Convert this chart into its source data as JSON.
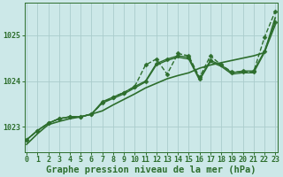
{
  "title": "Graphe pression niveau de la mer (hPa)",
  "bg_color": "#cce8e8",
  "grid_color": "#aacccc",
  "line_color": "#2d6e2d",
  "x_labels": [
    "0",
    "1",
    "2",
    "3",
    "4",
    "5",
    "6",
    "7",
    "8",
    "9",
    "10",
    "11",
    "12",
    "13",
    "14",
    "15",
    "16",
    "17",
    "18",
    "19",
    "20",
    "21",
    "22",
    "23"
  ],
  "yticks": [
    1023,
    1024,
    1025
  ],
  "ylim": [
    1022.45,
    1025.7
  ],
  "xlim": [
    -0.2,
    23.2
  ],
  "series": [
    {
      "values": [
        1022.62,
        1022.85,
        1023.05,
        1023.12,
        1023.18,
        1023.22,
        1023.28,
        1023.35,
        1023.48,
        1023.6,
        1023.72,
        1023.85,
        1023.95,
        1024.05,
        1024.12,
        1024.18,
        1024.28,
        1024.35,
        1024.4,
        1024.45,
        1024.5,
        1024.55,
        1024.62,
        1025.38
      ],
      "marker": null,
      "lw": 1.2,
      "ls": "-",
      "ms": 0
    },
    {
      "values": [
        1022.72,
        1022.92,
        1023.08,
        1023.18,
        1023.22,
        1023.22,
        1023.28,
        1023.52,
        1023.65,
        1023.75,
        1023.88,
        1024.35,
        1024.48,
        1024.15,
        1024.6,
        1024.55,
        1024.08,
        1024.55,
        1024.35,
        1024.2,
        1024.2,
        1024.2,
        1024.95,
        1025.52
      ],
      "marker": "D",
      "lw": 1.0,
      "ls": "--",
      "ms": 2.5
    },
    {
      "values": [
        1022.72,
        1022.92,
        1023.08,
        1023.18,
        1023.22,
        1023.22,
        1023.28,
        1023.55,
        1023.65,
        1023.75,
        1023.88,
        1024.0,
        1024.38,
        1024.48,
        1024.55,
        1024.52,
        1024.05,
        1024.45,
        1024.35,
        1024.18,
        1024.22,
        1024.22,
        1024.65,
        1025.28
      ],
      "marker": "D",
      "lw": 1.0,
      "ls": "-",
      "ms": 2.5
    },
    {
      "values": [
        1022.72,
        1022.92,
        1023.08,
        1023.18,
        1023.22,
        1023.22,
        1023.28,
        1023.52,
        1023.62,
        1023.72,
        1023.85,
        1023.98,
        1024.35,
        1024.45,
        1024.52,
        1024.48,
        1024.02,
        1024.42,
        1024.32,
        1024.15,
        1024.18,
        1024.18,
        1024.62,
        1025.22
      ],
      "marker": null,
      "lw": 1.0,
      "ls": "-",
      "ms": 0
    }
  ],
  "title_fontsize": 7.5,
  "tick_fontsize": 6.0
}
